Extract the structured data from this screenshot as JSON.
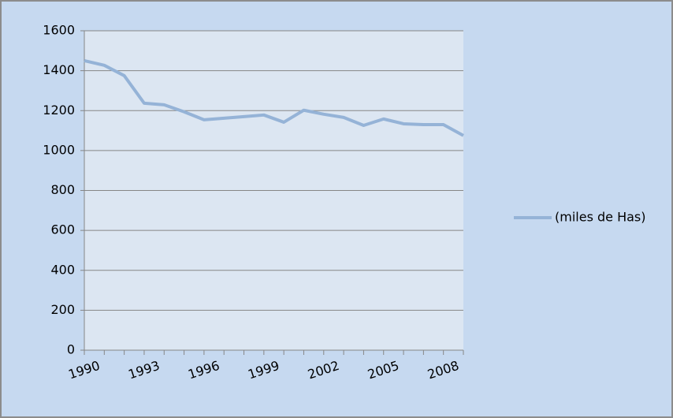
{
  "chart_data": {
    "type": "line",
    "categories": [
      "1990",
      null,
      null,
      "1993",
      null,
      null,
      "1996",
      null,
      null,
      "1999",
      null,
      null,
      "2002",
      null,
      null,
      "2005",
      null,
      null,
      "2008",
      null
    ],
    "series": [
      {
        "name": "(miles de Has)",
        "color": "#95b3d7",
        "values": [
          1450,
          1427,
          1375,
          1237,
          1229,
          1194,
          1154,
          1162,
          1170,
          1178,
          1142,
          1202,
          1182,
          1166,
          1126,
          1158,
          1134,
          1130,
          1130,
          1075
        ]
      }
    ],
    "ylim": [
      0,
      1600
    ],
    "yticks": [
      0,
      200,
      400,
      600,
      800,
      1000,
      1200,
      1400,
      1600
    ],
    "grid": true,
    "legend": "right"
  }
}
